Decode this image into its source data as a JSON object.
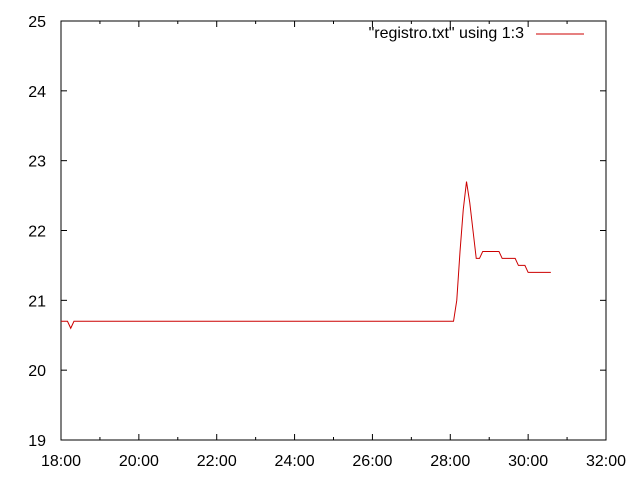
{
  "chart_data": {
    "type": "line",
    "title": "",
    "xlabel": "",
    "ylabel": "",
    "xlim": [
      "18:00",
      "32:00"
    ],
    "ylim": [
      19,
      25
    ],
    "grid": false,
    "legend_position": "top-right",
    "x_ticks": [
      "18:00",
      "20:00",
      "22:00",
      "24:00",
      "26:00",
      "28:00",
      "30:00",
      "32:00"
    ],
    "y_ticks": [
      "19",
      "20",
      "21",
      "22",
      "23",
      "24",
      "25"
    ],
    "series": [
      {
        "name": "\"registro.txt\" using 1:3",
        "color": "#cc0000",
        "x": [
          "18:00",
          "18:10",
          "18:15",
          "18:20",
          "18:25",
          "18:30",
          "28:00",
          "28:05",
          "28:10",
          "28:15",
          "28:20",
          "28:25",
          "28:30",
          "28:35",
          "28:40",
          "28:45",
          "28:50",
          "28:55",
          "29:00",
          "29:05",
          "29:10",
          "29:15",
          "29:20",
          "29:25",
          "29:30",
          "29:35",
          "29:40",
          "29:45",
          "29:50",
          "29:55",
          "30:00",
          "30:05",
          "30:10",
          "30:15",
          "30:20",
          "30:25",
          "30:30",
          "30:35"
        ],
        "y": [
          20.7,
          20.7,
          20.6,
          20.7,
          20.7,
          20.7,
          20.7,
          20.7,
          21.0,
          21.7,
          22.3,
          22.7,
          22.4,
          22.0,
          21.6,
          21.6,
          21.7,
          21.7,
          21.7,
          21.7,
          21.7,
          21.7,
          21.6,
          21.6,
          21.6,
          21.6,
          21.6,
          21.5,
          21.5,
          21.5,
          21.4,
          21.4,
          21.4,
          21.4,
          21.4,
          21.4,
          21.4,
          21.4
        ]
      }
    ]
  }
}
